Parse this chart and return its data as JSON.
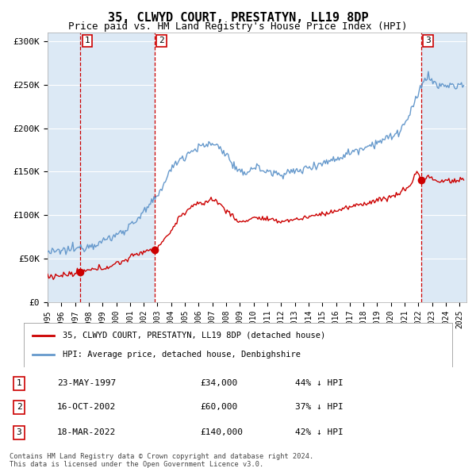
{
  "title": "35, CLWYD COURT, PRESTATYN, LL19 8DP",
  "subtitle": "Price paid vs. HM Land Registry's House Price Index (HPI)",
  "ylim": [
    0,
    310000
  ],
  "yticks": [
    0,
    50000,
    100000,
    150000,
    200000,
    250000,
    300000
  ],
  "ytick_labels": [
    "£0",
    "£50K",
    "£100K",
    "£150K",
    "£200K",
    "£250K",
    "£300K"
  ],
  "transactions": [
    {
      "date": "23-MAY-1997",
      "price": 34000,
      "pct": "44%",
      "label": "1",
      "x_year": 1997.38
    },
    {
      "date": "16-OCT-2002",
      "price": 60000,
      "pct": "37%",
      "label": "2",
      "x_year": 2002.79
    },
    {
      "date": "18-MAR-2022",
      "price": 140000,
      "pct": "42%",
      "label": "3",
      "x_year": 2022.21
    }
  ],
  "legend_label_red": "35, CLWYD COURT, PRESTATYN, LL19 8DP (detached house)",
  "legend_label_blue": "HPI: Average price, detached house, Denbighshire",
  "footer1": "Contains HM Land Registry data © Crown copyright and database right 2024.",
  "footer2": "This data is licensed under the Open Government Licence v3.0.",
  "red_color": "#cc0000",
  "blue_color": "#6699cc",
  "shade_color": "#dce9f5",
  "vline_color": "#cc0000",
  "background_color": "#e8eef5",
  "plot_bg_color": "#ffffff",
  "title_fontsize": 11,
  "subtitle_fontsize": 9,
  "xmin": 1995.0,
  "xmax": 2025.5
}
